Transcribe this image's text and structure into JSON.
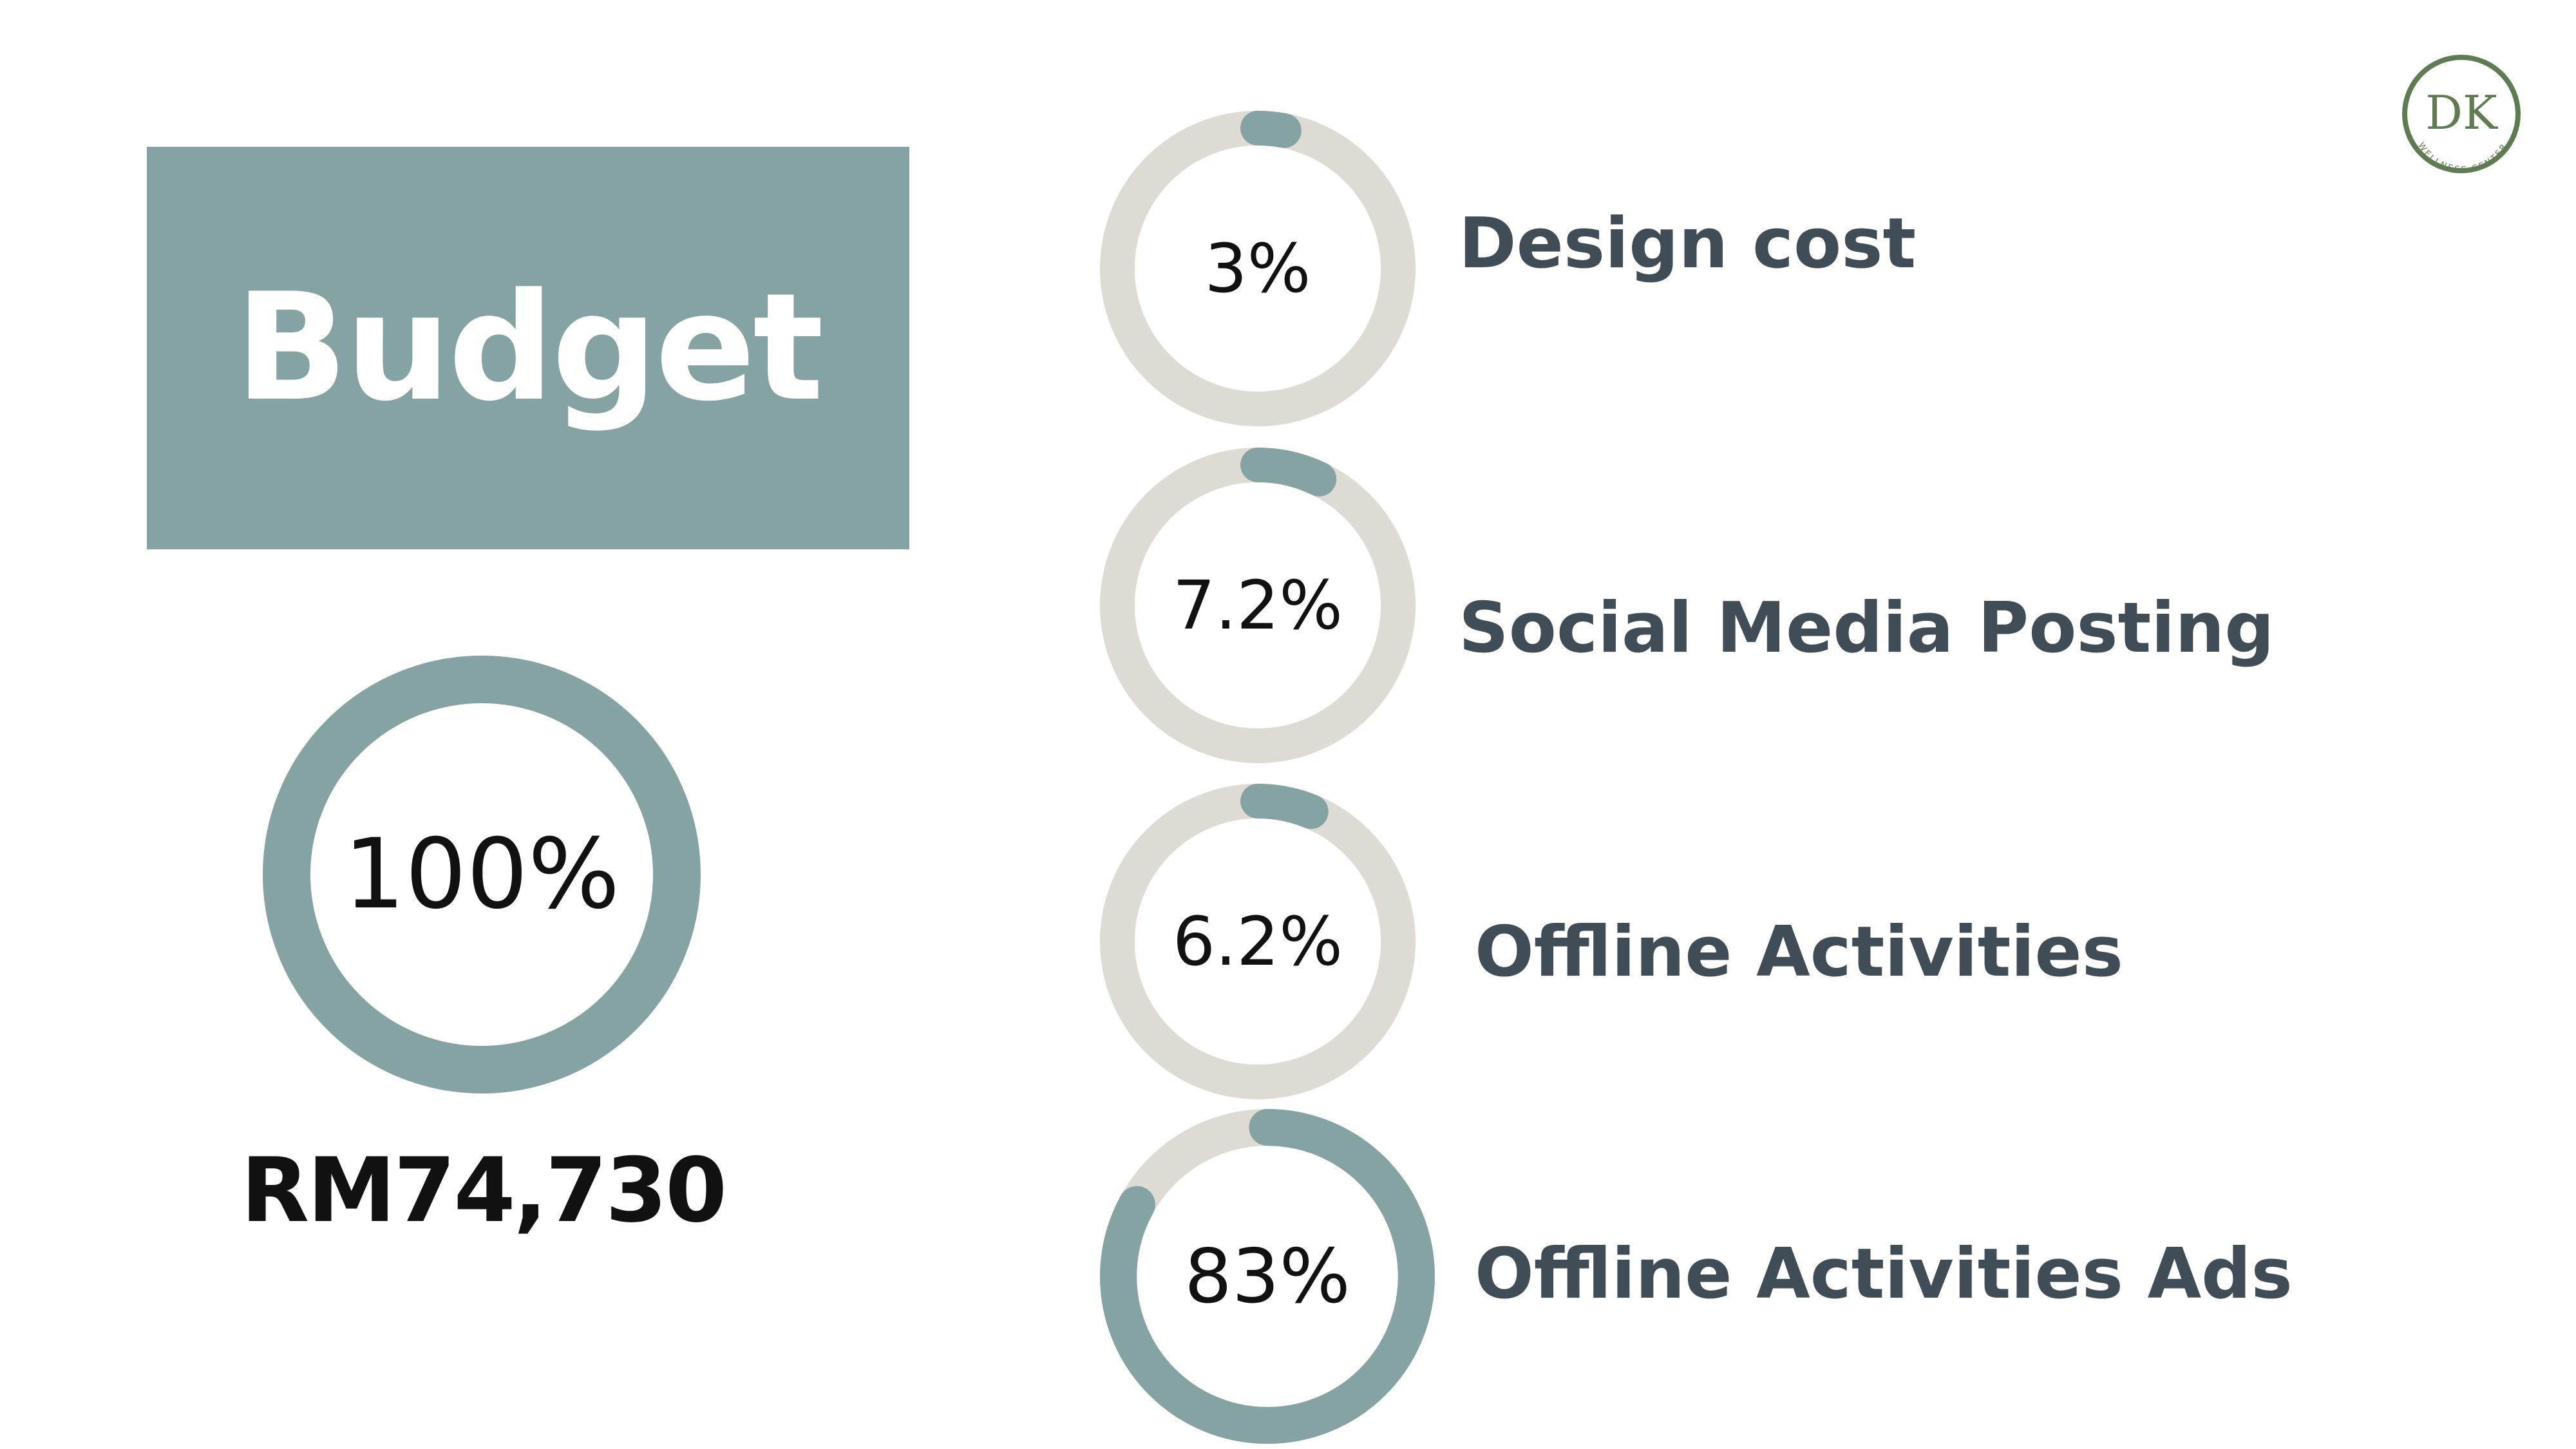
{
  "title": "Budget",
  "total": {
    "percent_label": "100%",
    "amount": "RM74,730"
  },
  "colors": {
    "accent": "#86a3a3",
    "track": "#dedbd5",
    "label": "#414d56",
    "logo": "#5f7b52"
  },
  "logo": {
    "letters": "DK",
    "tagline": "WELLNESS CENTER"
  },
  "chart_data": {
    "type": "donut",
    "categories": [
      "Design cost",
      "Social Media Posting",
      "Offline Activities",
      "Offline Activities Ads"
    ],
    "values": [
      3,
      7.2,
      6.2,
      83
    ],
    "value_labels": [
      "3%",
      "7.2%",
      "6.2%",
      "83%"
    ],
    "total_value": 100,
    "total_label": "100%",
    "total_amount": "RM74,730",
    "unit": "%"
  }
}
